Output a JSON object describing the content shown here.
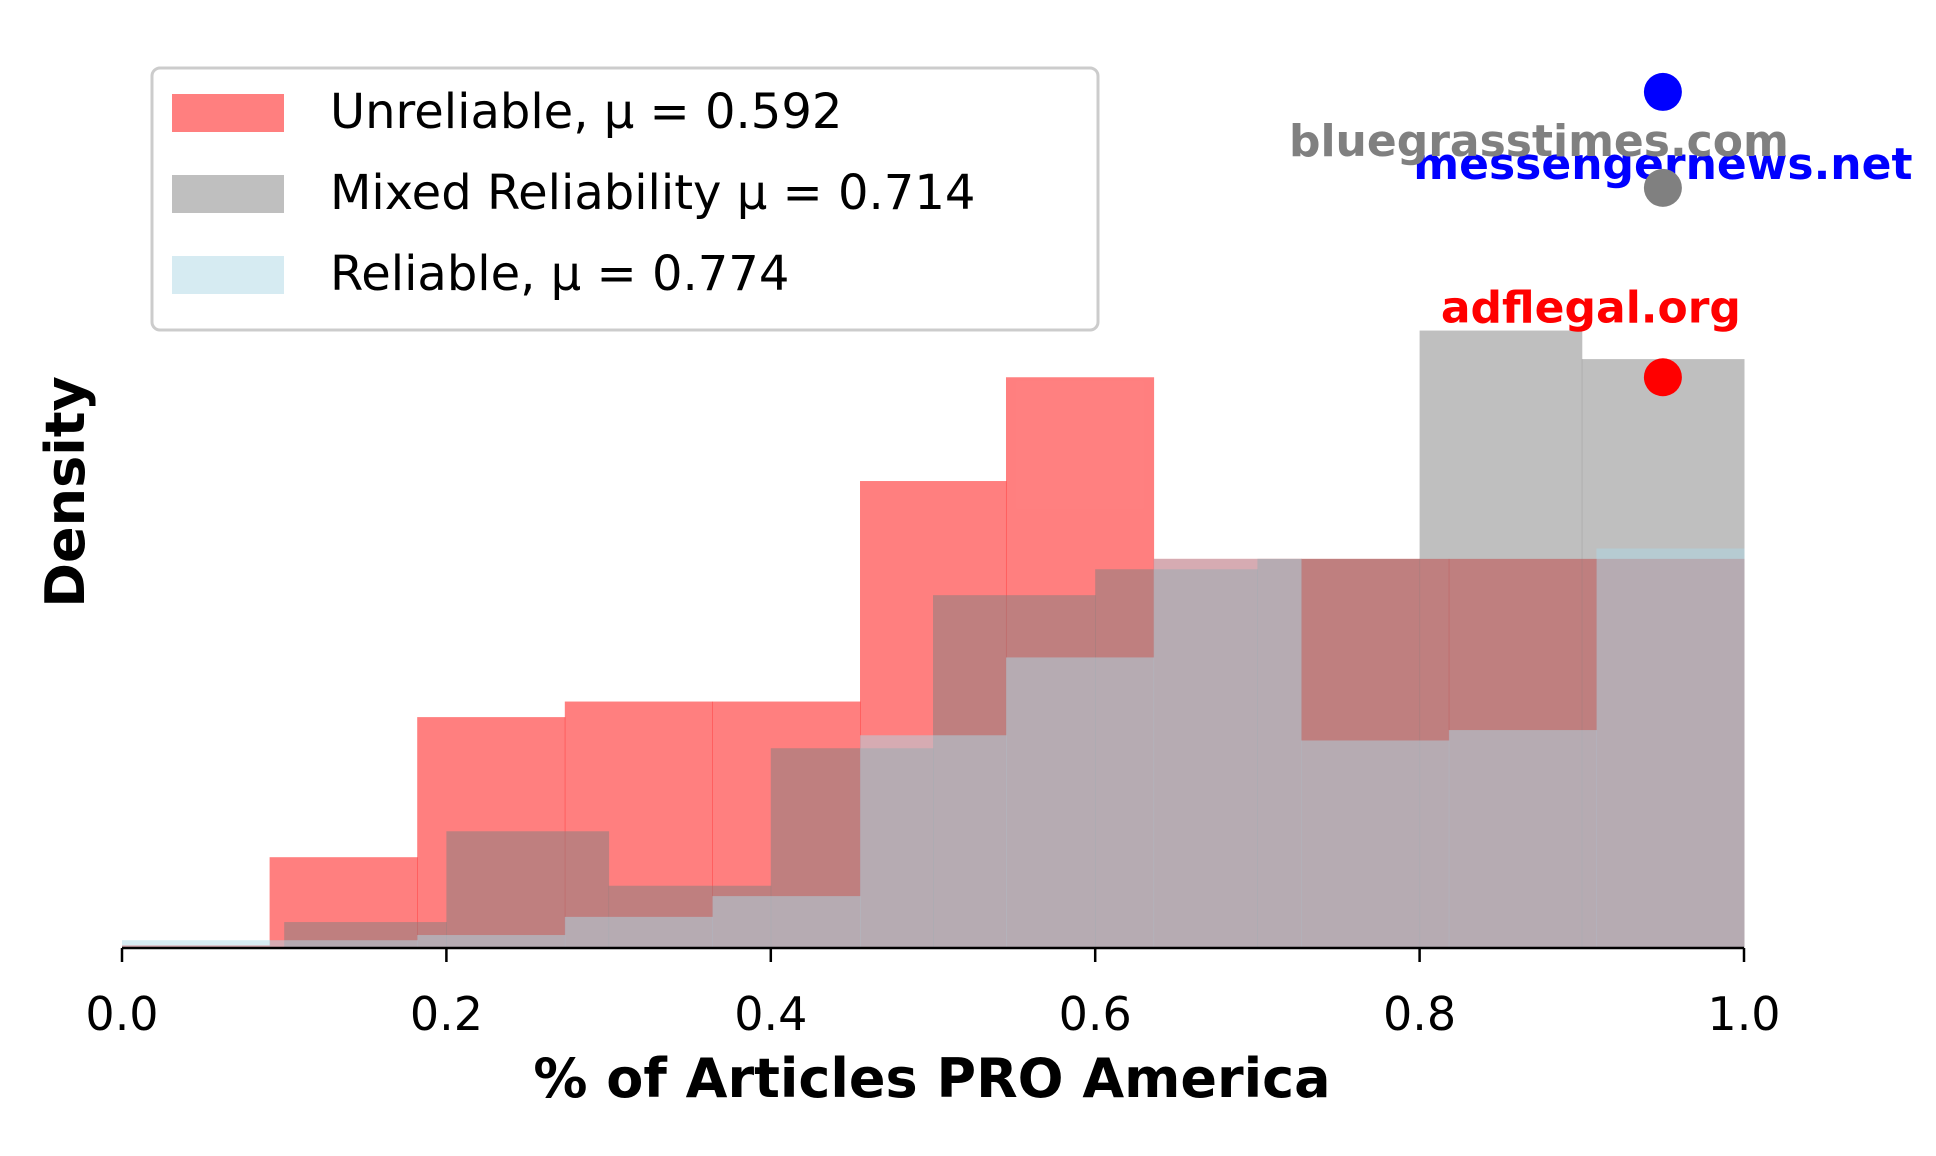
{
  "chart_data": {
    "type": "histogram",
    "xlabel": "% of Articles PRO America",
    "ylabel": "Density",
    "xlim": [
      0.0,
      1.0
    ],
    "ylim": [
      0,
      3.5
    ],
    "xticks": [
      "0.0",
      "0.2",
      "0.4",
      "0.6",
      "0.8",
      "1.0"
    ],
    "show_yticks": false,
    "grid": false,
    "legend_position": "top-left",
    "series": [
      {
        "name": "Unreliable, μ = 0.592",
        "color": "#ff0000",
        "alpha": 0.5,
        "bin_edges": [
          0.0,
          0.091,
          0.182,
          0.273,
          0.364,
          0.455,
          0.545,
          0.636,
          0.727,
          0.818,
          0.909,
          1.0
        ],
        "values": [
          0.01,
          0.35,
          0.89,
          0.95,
          0.95,
          1.8,
          2.2,
          1.5,
          1.5,
          1.5,
          1.5
        ]
      },
      {
        "name": "Mixed Reliability μ = 0.714",
        "color": "#808080",
        "alpha": 0.5,
        "bin_edges": [
          0.0,
          0.1,
          0.2,
          0.3,
          0.4,
          0.5,
          0.6,
          0.7,
          0.8,
          0.9,
          1.0
        ],
        "values": [
          0.0,
          0.1,
          0.45,
          0.24,
          0.77,
          1.36,
          1.46,
          1.5,
          2.38,
          2.27
        ]
      },
      {
        "name": "Reliable, μ = 0.774",
        "color": "#add8e6",
        "alpha": 0.5,
        "bin_edges": [
          0.0,
          0.091,
          0.182,
          0.273,
          0.364,
          0.455,
          0.545,
          0.636,
          0.727,
          0.818,
          0.909,
          1.0
        ],
        "values": [
          0.03,
          0.03,
          0.05,
          0.12,
          0.2,
          0.82,
          1.12,
          1.5,
          0.8,
          0.84,
          1.54
        ]
      }
    ],
    "annotations": [
      {
        "text": "messengernews.net",
        "color": "#0000ff",
        "x": 0.95,
        "y": 3.3
      },
      {
        "text": "bluegrasstimes.com",
        "color": "#808080",
        "x": 0.95,
        "y": 2.93
      },
      {
        "text": "adflegal.org",
        "color": "#ff0000",
        "x": 0.95,
        "y": 2.2
      }
    ]
  }
}
